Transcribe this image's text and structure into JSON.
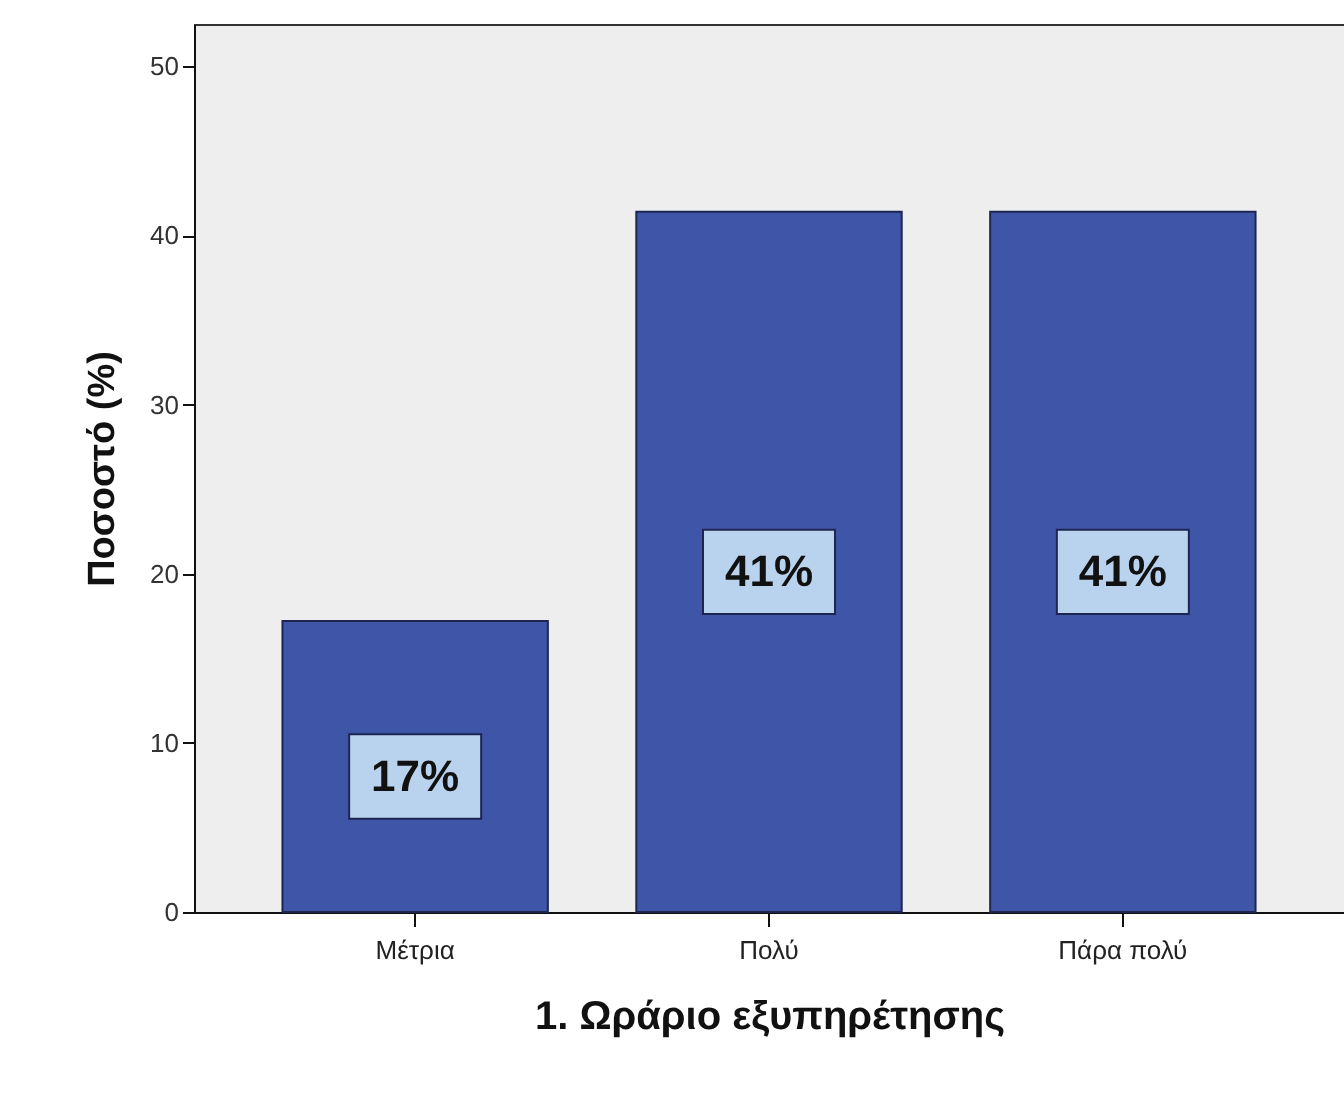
{
  "chart_data": {
    "type": "bar",
    "xlabel": "1. Ωράριο εξυπηρέτησης",
    "ylabel": "Ποσοστό (%)",
    "categories": [
      "Μέτρια",
      "Πολύ",
      "Πάρα πολύ"
    ],
    "values": [
      17.2,
      41.4,
      41.4
    ],
    "value_labels": [
      "17%",
      "41%",
      "41%"
    ],
    "color": "#3f56a8",
    "ylim": [
      0,
      52.5
    ],
    "yticks": [
      0,
      10,
      20,
      30,
      40,
      50
    ]
  }
}
